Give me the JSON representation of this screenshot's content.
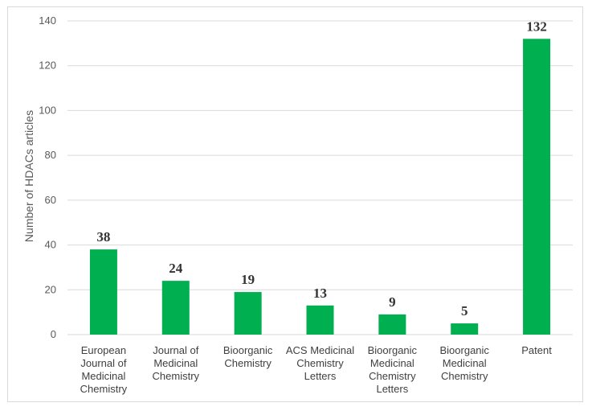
{
  "chart_data": {
    "type": "bar",
    "categories": [
      [
        "European",
        "Journal of",
        "Medicinal",
        "Chemistry"
      ],
      [
        "Journal of",
        "Medicinal",
        "Chemistry"
      ],
      [
        "Bioorganic",
        "Chemistry"
      ],
      [
        "ACS Medicinal",
        "Chemistry",
        "Letters"
      ],
      [
        "Bioorganic",
        "Medicinal",
        "Chemistry",
        "Letters"
      ],
      [
        "Bioorganic",
        "Medicinal",
        "Chemistry"
      ],
      [
        "Patent"
      ]
    ],
    "values": [
      38,
      24,
      19,
      13,
      9,
      5,
      132
    ],
    "data_labels": [
      "38",
      "24",
      "19",
      "13",
      "9",
      "5",
      "132"
    ],
    "ylabel": "Number of HDACs articles",
    "xlabel": "",
    "ylim": [
      0,
      140
    ],
    "yticks": [
      0,
      20,
      40,
      60,
      80,
      100,
      120,
      140
    ],
    "grid": true,
    "colors": {
      "bar": "#00b050",
      "grid": "#d9d9d9"
    }
  }
}
